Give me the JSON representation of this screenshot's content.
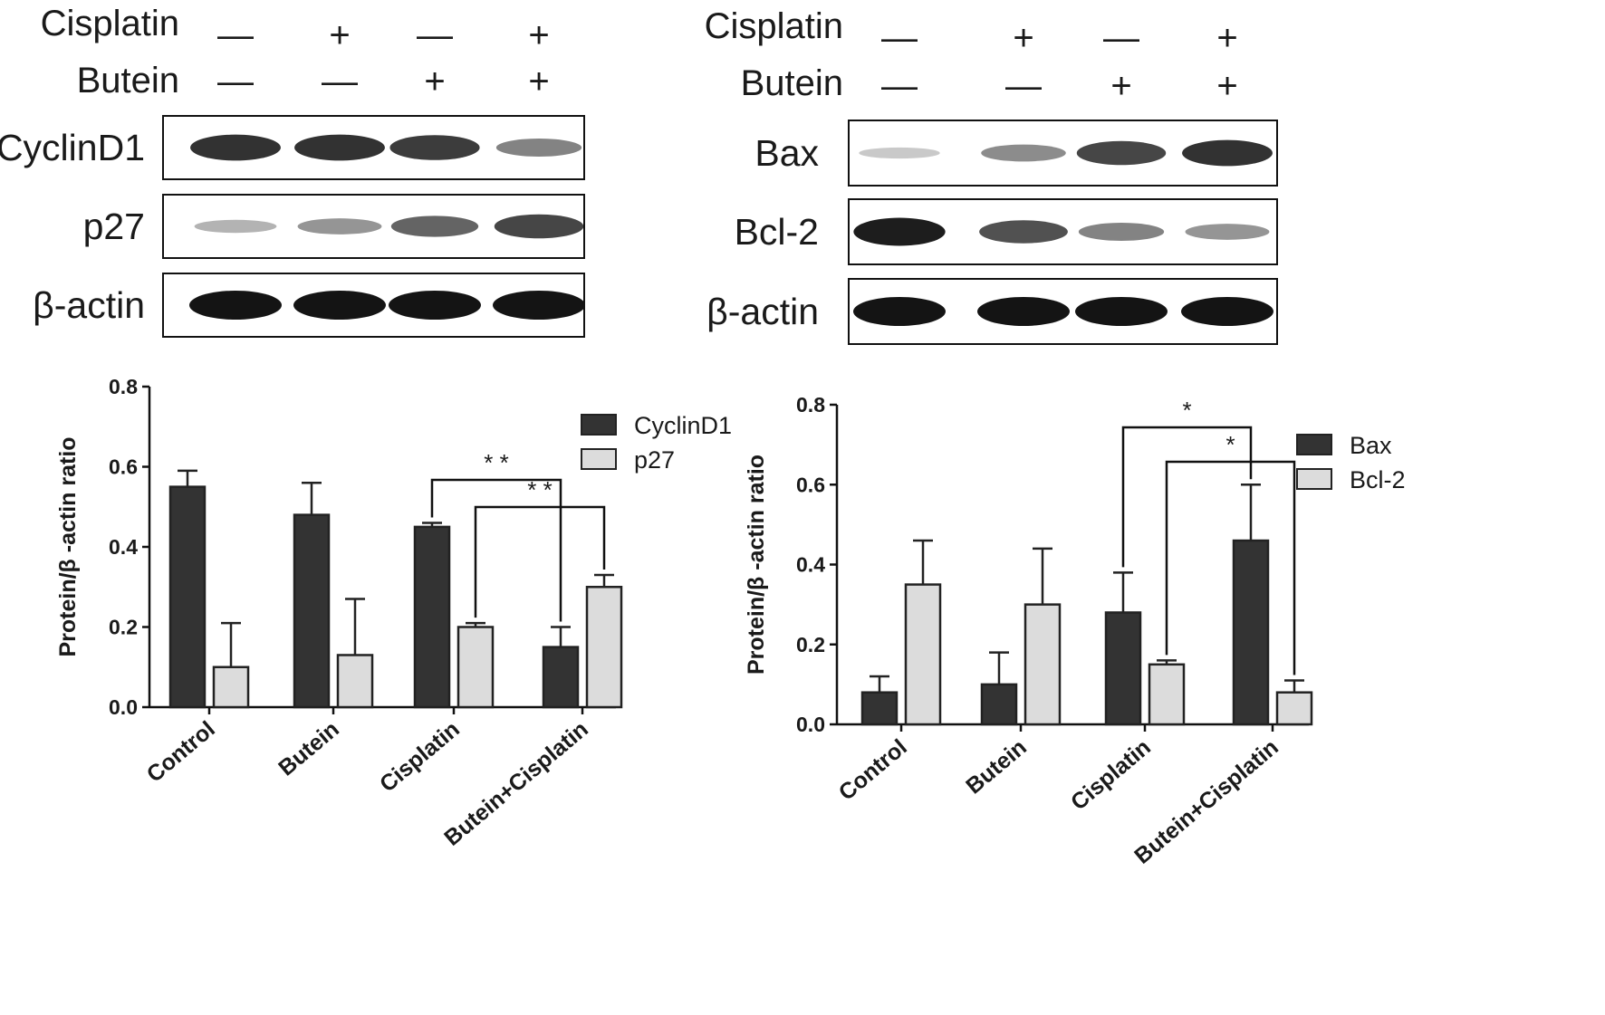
{
  "treatment_labels": {
    "cisplatin": "Cisplatin",
    "butein": "Butein"
  },
  "blots": [
    {
      "cisplatin_signs": [
        "—",
        "+",
        "—",
        "+"
      ],
      "butein_signs": [
        "—",
        "—",
        "+",
        "+"
      ],
      "rows": [
        {
          "label": "CyclinD1",
          "band_intensity": [
            0.85,
            0.85,
            0.8,
            0.45
          ]
        },
        {
          "label": "p27",
          "band_intensity": [
            0.2,
            0.35,
            0.6,
            0.75
          ]
        },
        {
          "label": "β-actin",
          "band_intensity": [
            1.0,
            1.0,
            1.0,
            1.0
          ]
        }
      ]
    },
    {
      "cisplatin_signs": [
        "—",
        "+",
        "—",
        "+"
      ],
      "butein_signs": [
        "—",
        "—",
        "+",
        "+"
      ],
      "rows": [
        {
          "label": "Bax",
          "band_intensity": [
            0.1,
            0.4,
            0.75,
            0.85
          ]
        },
        {
          "label": "Bcl-2",
          "band_intensity": [
            0.95,
            0.7,
            0.45,
            0.35
          ]
        },
        {
          "label": "β-actin",
          "band_intensity": [
            1.0,
            1.0,
            1.0,
            1.0
          ]
        }
      ]
    }
  ],
  "colors": {
    "dark_bar": "#333333",
    "light_bar": "#dcdcdc",
    "band": "#141414"
  },
  "chart_data": [
    {
      "type": "bar",
      "categories": [
        "Control",
        "Butein",
        "Cisplatin",
        "Butein+Cisplatin"
      ],
      "ylabel": "Protein/β -actin ratio",
      "ylim": [
        0,
        0.8
      ],
      "yticks": [
        "0.0",
        "0.2",
        "0.4",
        "0.6",
        "0.8"
      ],
      "legend_position": "top-right",
      "series": [
        {
          "name": "CyclinD1",
          "values": [
            0.55,
            0.48,
            0.45,
            0.15
          ],
          "errors": [
            0.04,
            0.08,
            0.01,
            0.05
          ]
        },
        {
          "name": "p27",
          "values": [
            0.1,
            0.13,
            0.2,
            0.3
          ],
          "errors": [
            0.11,
            0.14,
            0.01,
            0.03
          ]
        }
      ],
      "significance": [
        {
          "from_category": 2,
          "from_series": 0,
          "to_category": 3,
          "to_series": 0,
          "label": "* *"
        },
        {
          "from_category": 2,
          "from_series": 1,
          "to_category": 3,
          "to_series": 1,
          "label": "* *"
        }
      ]
    },
    {
      "type": "bar",
      "categories": [
        "Control",
        "Butein",
        "Cisplatin",
        "Butein+Cisplatin"
      ],
      "ylabel": "Protein/β -actin ratio",
      "ylim": [
        0,
        0.8
      ],
      "yticks": [
        "0.0",
        "0.2",
        "0.4",
        "0.6",
        "0.8"
      ],
      "legend_position": "top-right",
      "series": [
        {
          "name": "Bax",
          "values": [
            0.08,
            0.1,
            0.28,
            0.46
          ],
          "errors": [
            0.04,
            0.08,
            0.1,
            0.14
          ]
        },
        {
          "name": "Bcl-2",
          "values": [
            0.35,
            0.3,
            0.15,
            0.08
          ],
          "errors": [
            0.11,
            0.14,
            0.01,
            0.03
          ]
        }
      ],
      "significance": [
        {
          "from_category": 2,
          "from_series": 0,
          "to_category": 3,
          "to_series": 0,
          "label": "*"
        },
        {
          "from_category": 2,
          "from_series": 1,
          "to_category": 3,
          "to_series": 1,
          "label": "*"
        }
      ]
    }
  ]
}
